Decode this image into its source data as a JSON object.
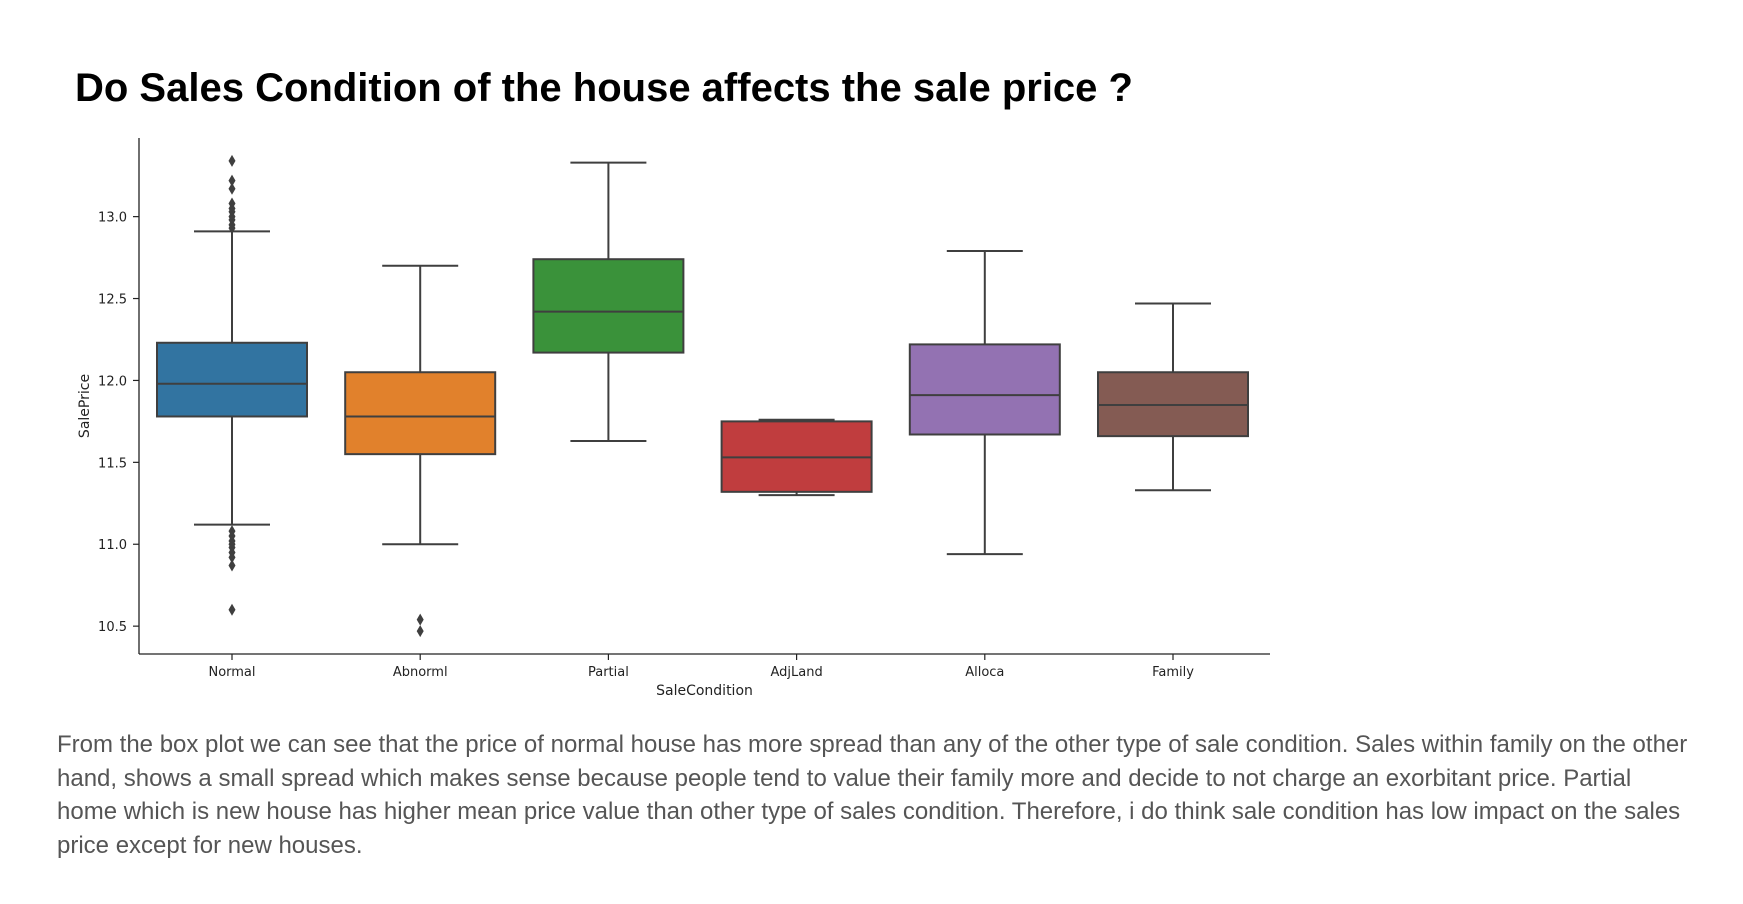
{
  "title": "Do Sales Condition of the house affects the sale price ?",
  "caption": "From the box plot we can see that the price of normal house has more spread than any of the other type of sale condition. Sales within family on the other hand, shows a small spread which makes sense because people tend to value their family more and decide to not charge an exorbitant price. Partial home which is new house has higher mean price value than other type of sales condition. Therefore, i do think sale condition has low impact on the sales price except for new houses.",
  "chart_data": {
    "type": "box",
    "xlabel": "SaleCondition",
    "ylabel": "SalePrice",
    "ylim": [
      10.33,
      13.48
    ],
    "yticks": [
      10.5,
      11.0,
      11.5,
      12.0,
      12.5,
      13.0
    ],
    "ytick_labels": [
      "10.5",
      "11.0",
      "11.5",
      "12.0",
      "12.5",
      "13.0"
    ],
    "grid": false,
    "categories": [
      "Normal",
      "Abnorml",
      "Partial",
      "AdjLand",
      "Alloca",
      "Family"
    ],
    "boxes": [
      {
        "category": "Normal",
        "color": "#3274a1",
        "whisker_low": 11.12,
        "q1": 11.78,
        "median": 11.98,
        "q3": 12.23,
        "whisker_high": 12.91,
        "outliers": [
          13.34,
          13.22,
          13.17,
          13.08,
          13.05,
          13.03,
          13.0,
          12.98,
          12.95,
          12.93,
          11.08,
          11.05,
          11.02,
          11.0,
          10.98,
          10.95,
          10.92,
          10.87,
          10.6
        ]
      },
      {
        "category": "Abnorml",
        "color": "#e1812c",
        "whisker_low": 11.0,
        "q1": 11.55,
        "median": 11.78,
        "q3": 12.05,
        "whisker_high": 12.7,
        "outliers": [
          10.54,
          10.47
        ]
      },
      {
        "category": "Partial",
        "color": "#3a923a",
        "whisker_low": 11.63,
        "q1": 12.17,
        "median": 12.42,
        "q3": 12.74,
        "whisker_high": 13.33,
        "outliers": []
      },
      {
        "category": "AdjLand",
        "color": "#c03d3e",
        "whisker_low": 11.3,
        "q1": 11.32,
        "median": 11.53,
        "q3": 11.75,
        "whisker_high": 11.76,
        "outliers": []
      },
      {
        "category": "Alloca",
        "color": "#9372b2",
        "whisker_low": 10.94,
        "q1": 11.67,
        "median": 11.91,
        "q3": 12.22,
        "whisker_high": 12.79,
        "outliers": []
      },
      {
        "category": "Family",
        "color": "#845b53",
        "whisker_low": 11.33,
        "q1": 11.66,
        "median": 11.85,
        "q3": 12.05,
        "whisker_high": 12.47,
        "outliers": []
      }
    ]
  }
}
